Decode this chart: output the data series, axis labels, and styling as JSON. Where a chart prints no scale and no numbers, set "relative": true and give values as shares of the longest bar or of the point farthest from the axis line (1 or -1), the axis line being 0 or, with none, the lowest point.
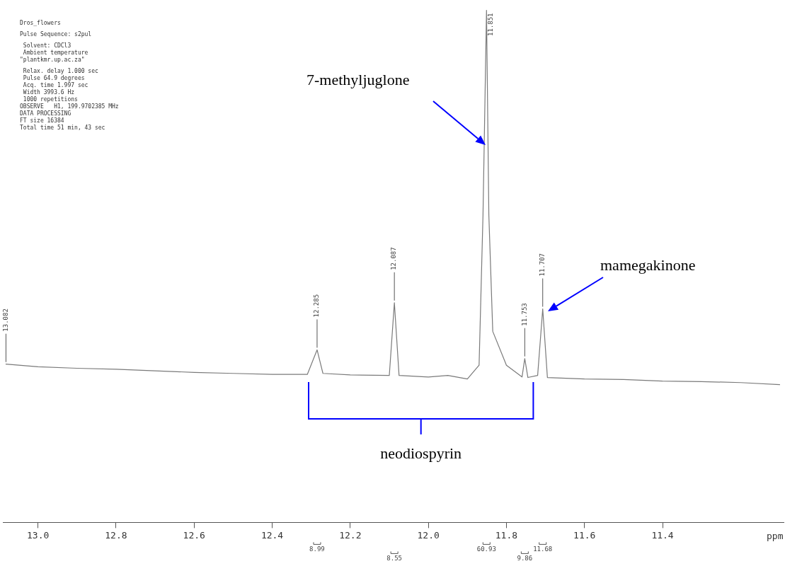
{
  "chart_data": {
    "type": "line",
    "title": "Dros_flowers",
    "xlabel": "ppm",
    "relative": true,
    "x": [
      13.082,
      13.0,
      12.9,
      12.8,
      12.7,
      12.6,
      12.5,
      12.4,
      12.31,
      12.285,
      12.27,
      12.2,
      12.1,
      12.087,
      12.075,
      12.0,
      11.95,
      11.9,
      11.87,
      11.86,
      11.851,
      11.845,
      11.835,
      11.8,
      11.76,
      11.753,
      11.745,
      11.72,
      11.707,
      11.695,
      11.6,
      11.5,
      11.4,
      11.3,
      11.2,
      11.1
    ],
    "series": [
      {
        "color": "#7a7a7a",
        "values": [
          0.309,
          0.304,
          0.301,
          0.299,
          0.296,
          0.293,
          0.291,
          0.289,
          0.289,
          0.337,
          0.291,
          0.288,
          0.287,
          0.429,
          0.287,
          0.284,
          0.287,
          0.28,
          0.307,
          0.6,
          1,
          0.6,
          0.373,
          0.307,
          0.284,
          0.32,
          0.283,
          0.287,
          0.417,
          0.283,
          0.28,
          0.279,
          0.276,
          0.275,
          0.273,
          0.269
        ]
      }
    ],
    "xlim": [
      13.09,
      11.09
    ],
    "xticks": [
      {
        "value": 13.0,
        "label": "13.0"
      },
      12.8,
      12.6,
      12.4,
      12.2,
      {
        "value": 12.0,
        "label": "12.0"
      },
      11.8,
      11.6,
      11.4
    ],
    "grid": false,
    "legend": false,
    "marker": "none",
    "line_style": "solid",
    "annotations": [
      {
        "text": "13.082",
        "x": 13.082,
        "y": 0.309
      },
      {
        "text": "12.285",
        "x": 12.285,
        "y": 0.337
      },
      {
        "text": "12.087",
        "x": 12.087,
        "y": 0.429
      },
      {
        "text": "11.851",
        "x": 11.851,
        "y": 1
      },
      {
        "text": "11.753",
        "x": 11.753,
        "y": 0.32
      },
      {
        "text": "11.707",
        "x": 11.707,
        "y": 0.417
      },
      "7-methyljuglone",
      "mamegakinone",
      "neodiospyrin",
      "8.99",
      "8.55",
      "60.93",
      "9.86",
      "11.68",
      "Pulse Sequence: s2pul",
      " Solvent: CDCl3",
      " Ambient temperature",
      "\"plantkmr.up.ac.za\"",
      " Relax. delay 1.000 sec",
      " Pulse 64.9 degrees",
      " Acq. time 1.997 sec",
      " Width 3993.6 Hz",
      " 1000 repetitions",
      "OBSERVE   H1, 199.9702385 MHz",
      "DATA PROCESSING",
      "FT size 16384",
      "Total time 51 min, 43 sec"
    ]
  }
}
